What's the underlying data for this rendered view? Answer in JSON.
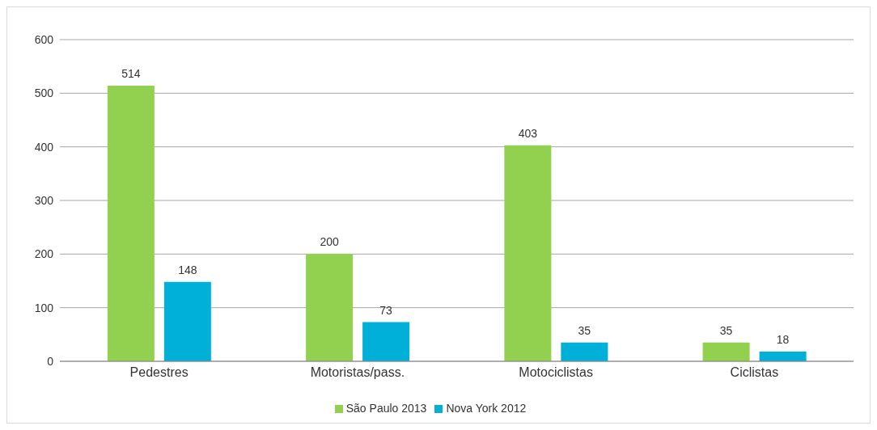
{
  "chart_data": {
    "type": "bar",
    "categories": [
      "Pedestres",
      "Motoristas/pass.",
      "Motociclistas",
      "Ciclistas"
    ],
    "series": [
      {
        "name": "São Paulo 2013",
        "color": "#92d050",
        "values": [
          514,
          200,
          403,
          35
        ]
      },
      {
        "name": "Nova York 2012",
        "color": "#00b0d8",
        "values": [
          148,
          73,
          35,
          18
        ]
      }
    ],
    "ylim": [
      0,
      600
    ],
    "yticks": [
      0,
      100,
      200,
      300,
      400,
      500,
      600
    ],
    "grid": "y",
    "legend": "bottom",
    "data_labels": true
  }
}
